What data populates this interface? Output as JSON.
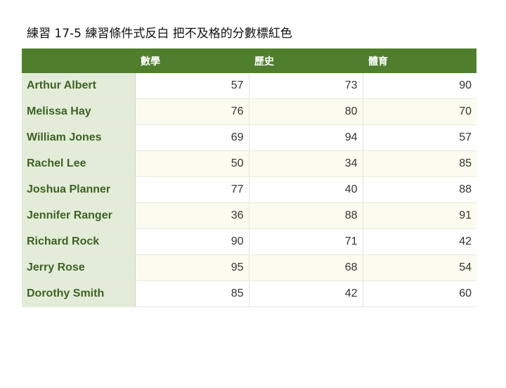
{
  "title": "練習 17-5 練習條件式反白 把不及格的分數標紅色",
  "table": {
    "headers": [
      "",
      "數學",
      "歷史",
      "體育"
    ],
    "rows": [
      {
        "name": "Arthur Albert",
        "scores": [
          "57",
          "73",
          "90"
        ]
      },
      {
        "name": "Melissa Hay",
        "scores": [
          "76",
          "80",
          "70"
        ]
      },
      {
        "name": "William Jones",
        "scores": [
          "69",
          "94",
          "57"
        ]
      },
      {
        "name": "Rachel Lee",
        "scores": [
          "50",
          "34",
          "85"
        ]
      },
      {
        "name": "Joshua Planner",
        "scores": [
          "77",
          "40",
          "88"
        ]
      },
      {
        "name": "Jennifer Ranger",
        "scores": [
          "36",
          "88",
          "91"
        ]
      },
      {
        "name": "Richard Rock",
        "scores": [
          "90",
          "71",
          "42"
        ]
      },
      {
        "name": "Jerry Rose",
        "scores": [
          "95",
          "68",
          "54"
        ]
      },
      {
        "name": "Dorothy Smith",
        "scores": [
          "85",
          "42",
          "60"
        ]
      }
    ]
  },
  "colors": {
    "header_bg": "#4f7f2c",
    "header_text": "#ffffff",
    "name_col_bg": "#e3ecd8",
    "name_text": "#3d6224",
    "alt_row_bg": "#fbfcef"
  }
}
